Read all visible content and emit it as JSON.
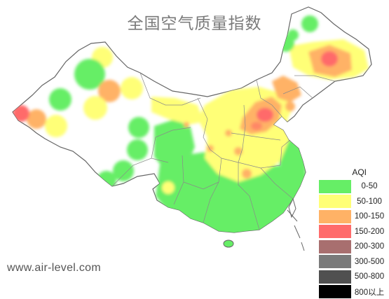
{
  "title": "全国空气质量指数",
  "footer": "www.air-level.com",
  "colors": {
    "land": "#ffffff",
    "border": "#777777",
    "province_border": "#8a8a8a",
    "good": "#66ee66",
    "moderate": "#ffff77",
    "usg": "#ffb266",
    "unhealthy": "#ff6b6b"
  },
  "legend": {
    "title": "AQI",
    "items": [
      {
        "label": "0-50",
        "color": "#66ee66"
      },
      {
        "label": "50-100",
        "color": "#ffff77"
      },
      {
        "label": "100-150",
        "color": "#ffb266"
      },
      {
        "label": "150-200",
        "color": "#ff6b6b"
      },
      {
        "label": "200-300",
        "color": "#a86f6f"
      },
      {
        "label": "300-500",
        "color": "#7a7a7a"
      },
      {
        "label": "500-800",
        "color": "#505050"
      },
      {
        "label": "800以上",
        "color": "#000000"
      }
    ]
  }
}
